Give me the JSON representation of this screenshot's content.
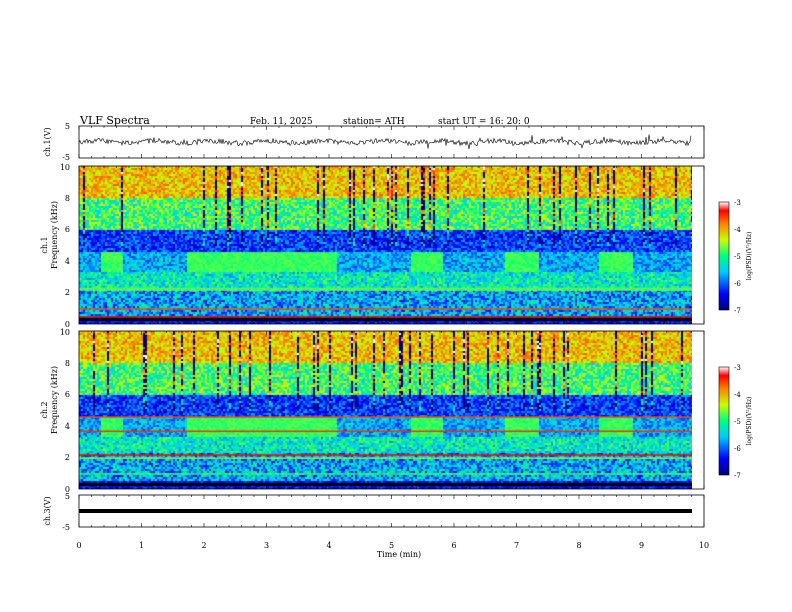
{
  "header": {
    "title": "VLF  Spectra",
    "date": "Feb. 11, 2025",
    "station": "station= ATH",
    "start": "start  UT  =   16: 20: 0"
  },
  "chart_data": [
    {
      "type": "line",
      "id": "ch1-waveform",
      "ylabel": "ch.1(V)",
      "ylim": [
        -5,
        5
      ],
      "y_ticks": [
        "5",
        "-5"
      ],
      "xlim": [
        0,
        9.8
      ]
    },
    {
      "type": "heatmap",
      "id": "ch1-spectrogram",
      "ylabel_line1": "ch.1",
      "ylabel_line2": "Frequency  (kHz)",
      "ylim": [
        0,
        10
      ],
      "y_ticks": [
        "0",
        "2",
        "4",
        "6",
        "8",
        "10"
      ],
      "xlim": [
        0,
        9.8
      ],
      "colorbar": {
        "label": "log(PSD)(V²/Hz)",
        "range": [
          -7,
          -3
        ],
        "ticks": [
          "-3",
          "-4",
          "-5",
          "-6",
          "-7"
        ]
      },
      "segments_4khz": [
        [
          0.35,
          0.7
        ],
        [
          1.7,
          4.1
        ],
        [
          5.3,
          5.8
        ],
        [
          6.8,
          7.35
        ],
        [
          8.3,
          8.85
        ]
      ]
    },
    {
      "type": "heatmap",
      "id": "ch2-spectrogram",
      "ylabel_line1": "ch.2",
      "ylabel_line2": "Frequency  (kHz)",
      "ylim": [
        0,
        10
      ],
      "y_ticks": [
        "0",
        "2",
        "4",
        "6",
        "8",
        "10"
      ],
      "xlim": [
        0,
        9.8
      ],
      "colorbar": {
        "label": "log(PSD)(V²/Hz)",
        "range": [
          -7,
          -3
        ],
        "ticks": [
          "-3",
          "-4",
          "-5",
          "-6",
          "-7"
        ]
      },
      "segments_4khz": [
        [
          0.35,
          0.7
        ],
        [
          1.7,
          4.1
        ],
        [
          5.3,
          5.8
        ],
        [
          6.8,
          7.35
        ],
        [
          8.3,
          8.85
        ]
      ]
    },
    {
      "type": "line",
      "id": "ch3-waveform",
      "ylabel": "ch.3(V)",
      "ylim": [
        -5,
        5
      ],
      "y_ticks": [
        "5",
        "-5"
      ],
      "xlim": [
        0,
        9.8
      ]
    }
  ],
  "xaxis": {
    "label": "Time  (min)",
    "ticks": [
      "0",
      "1",
      "2",
      "3",
      "4",
      "5",
      "6",
      "7",
      "8",
      "9",
      "10"
    ],
    "range": [
      0,
      10
    ]
  },
  "colors": {
    "axis": "#000000",
    "background": "#ffffff"
  }
}
